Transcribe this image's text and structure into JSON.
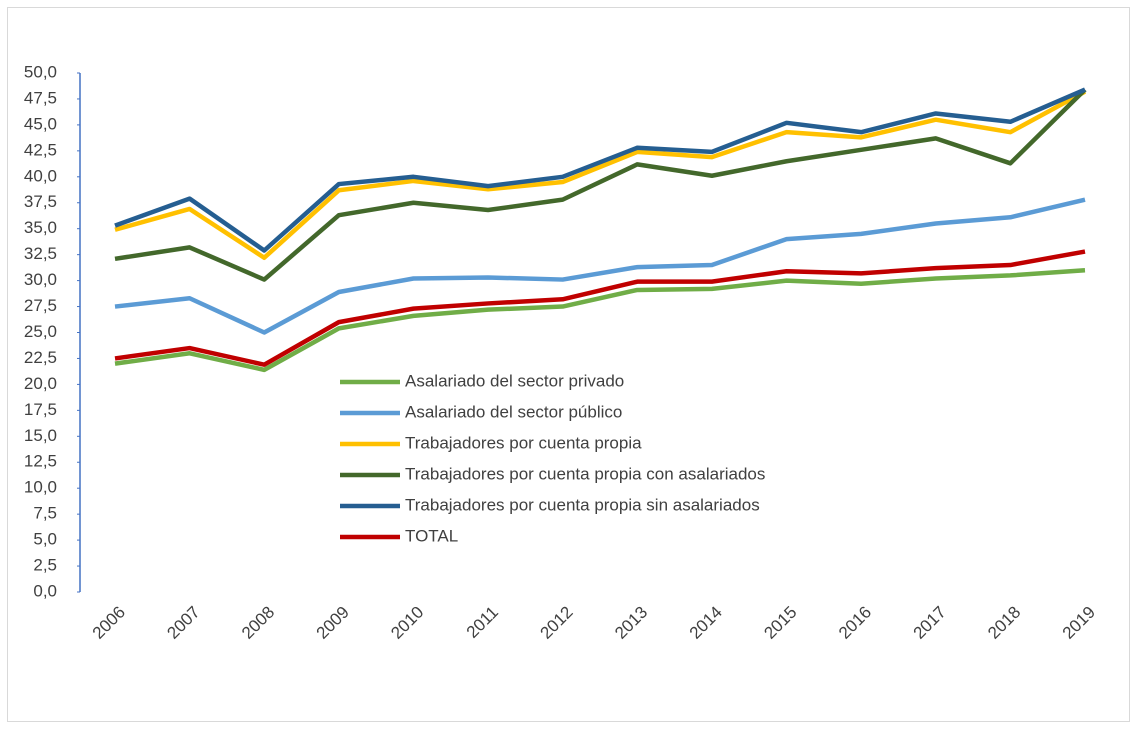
{
  "chart_data": {
    "type": "line",
    "categories": [
      "2006",
      "2007",
      "2008",
      "2009",
      "2010",
      "2011",
      "2012",
      "2013",
      "2014",
      "2015",
      "2016",
      "2017",
      "2018",
      "2019"
    ],
    "series": [
      {
        "name": "Asalariado del sector privado",
        "color": "#70ad47",
        "values": [
          22.0,
          23.0,
          21.4,
          25.4,
          26.6,
          27.2,
          27.5,
          29.1,
          29.2,
          30.0,
          29.7,
          30.2,
          30.5,
          31.0
        ]
      },
      {
        "name": "Asalariado del sector público",
        "color": "#5b9bd5",
        "values": [
          27.5,
          28.3,
          25.0,
          28.9,
          30.2,
          30.3,
          30.1,
          31.3,
          31.5,
          34.0,
          34.5,
          35.5,
          36.1,
          37.8
        ]
      },
      {
        "name": "Trabajadores por cuenta propia",
        "color": "#ffc000",
        "values": [
          34.9,
          36.9,
          32.2,
          38.7,
          39.6,
          38.8,
          39.5,
          42.4,
          41.9,
          44.3,
          43.8,
          45.5,
          44.3,
          48.2
        ]
      },
      {
        "name": "Trabajadores por cuenta propia con asalariados",
        "color": "#43682b",
        "values": [
          32.1,
          33.2,
          30.1,
          36.3,
          37.5,
          36.8,
          37.8,
          41.2,
          40.1,
          41.5,
          42.6,
          43.7,
          41.3,
          48.4
        ]
      },
      {
        "name": "Trabajadores por cuenta propia sin asalariados",
        "color": "#255e91",
        "values": [
          35.3,
          37.9,
          32.9,
          39.3,
          40.0,
          39.1,
          40.0,
          42.8,
          42.4,
          45.2,
          44.3,
          46.1,
          45.3,
          48.4
        ]
      },
      {
        "name": "TOTAL",
        "color": "#c00000",
        "values": [
          22.5,
          23.5,
          21.9,
          26.0,
          27.3,
          27.8,
          28.2,
          29.9,
          29.9,
          30.9,
          30.7,
          31.2,
          31.5,
          32.8
        ]
      }
    ],
    "ylim": [
      0,
      50
    ],
    "yticks": [
      {
        "value": 0,
        "label": "0,0"
      },
      {
        "value": 2.5,
        "label": "2,5"
      },
      {
        "value": 5,
        "label": "5,0"
      },
      {
        "value": 7.5,
        "label": "7,5"
      },
      {
        "value": 10,
        "label": "10,0"
      },
      {
        "value": 12.5,
        "label": "12,5"
      },
      {
        "value": 15,
        "label": "15,0"
      },
      {
        "value": 17.5,
        "label": "17,5"
      },
      {
        "value": 20,
        "label": "20,0"
      },
      {
        "value": 22.5,
        "label": "22,5"
      },
      {
        "value": 25,
        "label": "25,0"
      },
      {
        "value": 27.5,
        "label": "27,5"
      },
      {
        "value": 30,
        "label": "30,0"
      },
      {
        "value": 32.5,
        "label": "32,5"
      },
      {
        "value": 35,
        "label": "35,0"
      },
      {
        "value": 37.5,
        "label": "37,5"
      },
      {
        "value": 40,
        "label": "40,0"
      },
      {
        "value": 42.5,
        "label": "42,5"
      },
      {
        "value": 45,
        "label": "45,0"
      },
      {
        "value": 47.5,
        "label": "47,5"
      },
      {
        "value": 50,
        "label": "50,0"
      }
    ],
    "grid": false
  }
}
